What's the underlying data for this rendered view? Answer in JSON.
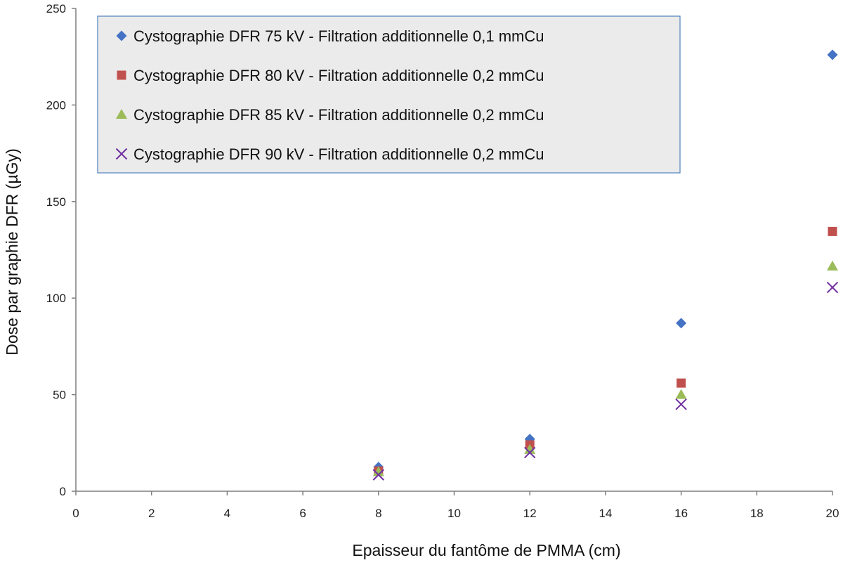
{
  "chart_data": {
    "type": "scatter",
    "title": "",
    "xlabel": "Epaisseur du fantôme de PMMA (cm)",
    "ylabel": "Dose par graphie DFR (µGy)",
    "xlim": [
      0,
      20
    ],
    "ylim": [
      0,
      250
    ],
    "xticks": [
      0,
      2,
      4,
      6,
      8,
      10,
      12,
      14,
      16,
      18,
      20
    ],
    "yticks": [
      0,
      50,
      100,
      150,
      200,
      250
    ],
    "grid": false,
    "legend_position": "top-left inside",
    "series": [
      {
        "name": "Cystographie DFR 75 kV - Filtration additionnelle 0,1 mmCu",
        "marker": "diamond",
        "color": "#4472C4",
        "points": [
          [
            8,
            12.5
          ],
          [
            12,
            27
          ],
          [
            16,
            87
          ],
          [
            20,
            226
          ]
        ]
      },
      {
        "name": "Cystographie DFR 80 kV - Filtration additionnelle 0,2 mmCu",
        "marker": "square",
        "color": "#C0504D",
        "points": [
          [
            8,
            10.5
          ],
          [
            12,
            24
          ],
          [
            16,
            56
          ],
          [
            20,
            134.5
          ]
        ]
      },
      {
        "name": "Cystographie DFR 85 kV - Filtration additionnelle 0,2 mmCu",
        "marker": "triangle",
        "color": "#9BBB59",
        "points": [
          [
            8,
            10
          ],
          [
            12,
            21.5
          ],
          [
            16,
            50
          ],
          [
            20,
            116.5
          ]
        ]
      },
      {
        "name": "Cystographie DFR 90 kV - Filtration additionnelle 0,2 mmCu",
        "marker": "x",
        "color": "#7030A0",
        "points": [
          [
            8,
            8.5
          ],
          [
            12,
            20
          ],
          [
            16,
            45
          ],
          [
            20,
            105.5
          ]
        ]
      }
    ]
  }
}
